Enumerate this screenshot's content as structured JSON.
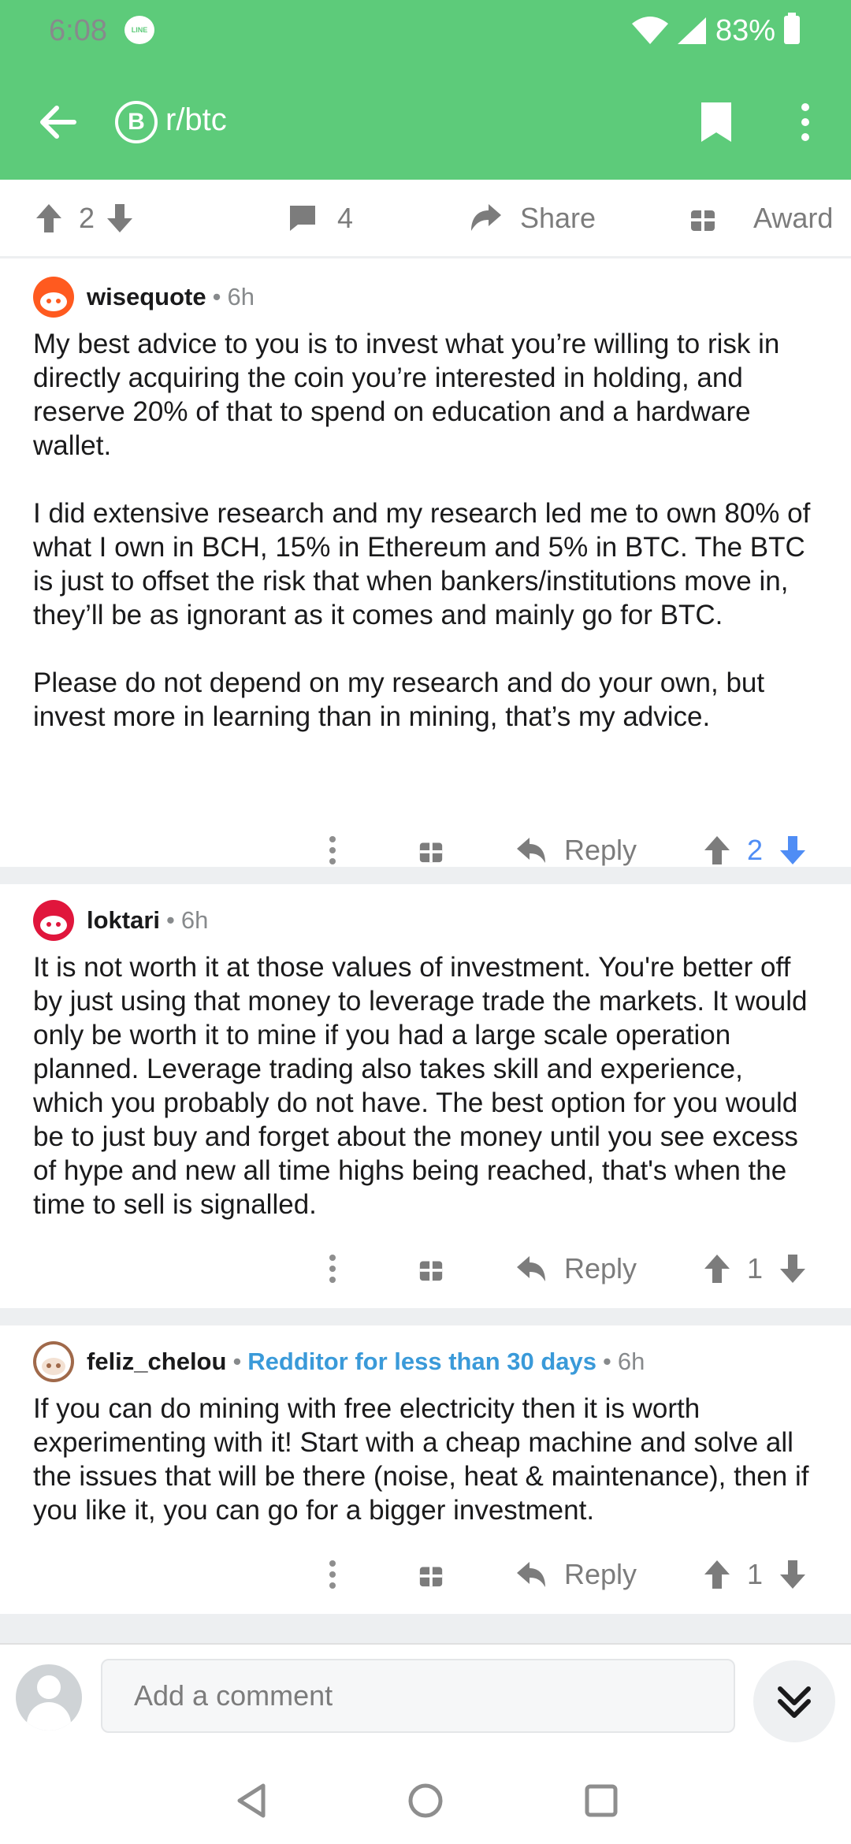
{
  "status_bar": {
    "time": "6:08",
    "line_badge": "LINE",
    "battery": "83%"
  },
  "toolbar": {
    "subreddit": "r/btc",
    "sub_icon_glyph": "B"
  },
  "post_actions": {
    "upvotes": "2",
    "comments": "4",
    "share_label": "Share",
    "award_label": "Award"
  },
  "comments": [
    {
      "author": "wisequote",
      "flair": "",
      "time": "6h",
      "avatar_color": "#ff5a1f",
      "paragraphs": [
        "My best advice to you is to invest what you’re willing to risk in directly acquiring the coin you’re interested in holding, and reserve 20% of that to spend on education and a hardware wallet.",
        "I did extensive research and my research led me to own 80% of what I own in BCH, 15% in Ethereum and 5% in BTC. The BTC is just to offset the risk that when bankers/institutions move in, they’ll be as ignorant as it comes and mainly go for BTC.",
        "Please do not depend on my research and do your own, but invest more in learning than in mining, that’s my advice."
      ],
      "reply_label": "Reply",
      "score": "2",
      "voted": "up"
    },
    {
      "author": "loktari",
      "flair": "",
      "time": "6h",
      "avatar_color": "#e0163c",
      "paragraphs": [
        "It is not worth it at those values of investment. You're better off by just using that money to leverage trade the markets. It would only be worth it to mine if you had a large scale operation planned. Leverage trading also takes skill and experience, which you probably do not have. The best option for you would be to just buy and forget about the money until you see excess of hype and new all time highs being reached, that's when the time to sell is signalled."
      ],
      "reply_label": "Reply",
      "score": "1",
      "voted": "none"
    },
    {
      "author": "feliz_chelou",
      "flair": "Redditor for less than 30 days",
      "time": "6h",
      "avatar_color": "#a0694a",
      "paragraphs": [
        "If you can do mining with free electricity then it is worth experimenting with it! Start with a cheap machine and solve all the issues that will be there (noise, heat & maintenance), then if you like it, you can go for a bigger investment."
      ],
      "reply_label": "Reply",
      "score": "1",
      "voted": "none"
    }
  ],
  "composer": {
    "placeholder": "Add a comment"
  },
  "colors": {
    "header": "#5dcb7a",
    "upvote_blue": "#4f8df5",
    "flair_blue": "#3a9ad9"
  }
}
